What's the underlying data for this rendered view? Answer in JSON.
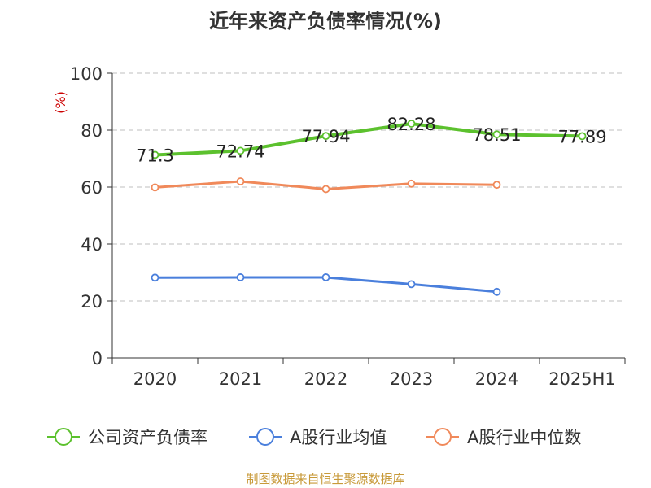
{
  "chart_data": {
    "type": "line",
    "title": "近年来资产负债率情况(%)",
    "ylabel": "(%)",
    "xlabel": "",
    "ylim": [
      0,
      100
    ],
    "yticks": [
      0,
      20,
      40,
      60,
      80,
      100
    ],
    "grid": true,
    "legend_position": "bottom",
    "categories": [
      "2020",
      "2021",
      "2022",
      "2023",
      "2024",
      "2025H1"
    ],
    "series": [
      {
        "name": "公司资产负债率",
        "color": "#5cc12e",
        "values": [
          71.3,
          72.74,
          77.94,
          82.28,
          78.51,
          77.89
        ],
        "show_labels": true,
        "line_width": 4
      },
      {
        "name": "A股行业均值",
        "color": "#4a7fdc",
        "values": [
          28.2,
          28.3,
          28.3,
          25.9,
          23.2,
          null
        ],
        "show_labels": false,
        "line_width": 3
      },
      {
        "name": "A股行业中位数",
        "color": "#f0895a",
        "values": [
          59.9,
          62.0,
          59.3,
          61.2,
          60.8,
          null
        ],
        "show_labels": false,
        "line_width": 3
      }
    ]
  },
  "footer": "制图数据来自恒生聚源数据库"
}
